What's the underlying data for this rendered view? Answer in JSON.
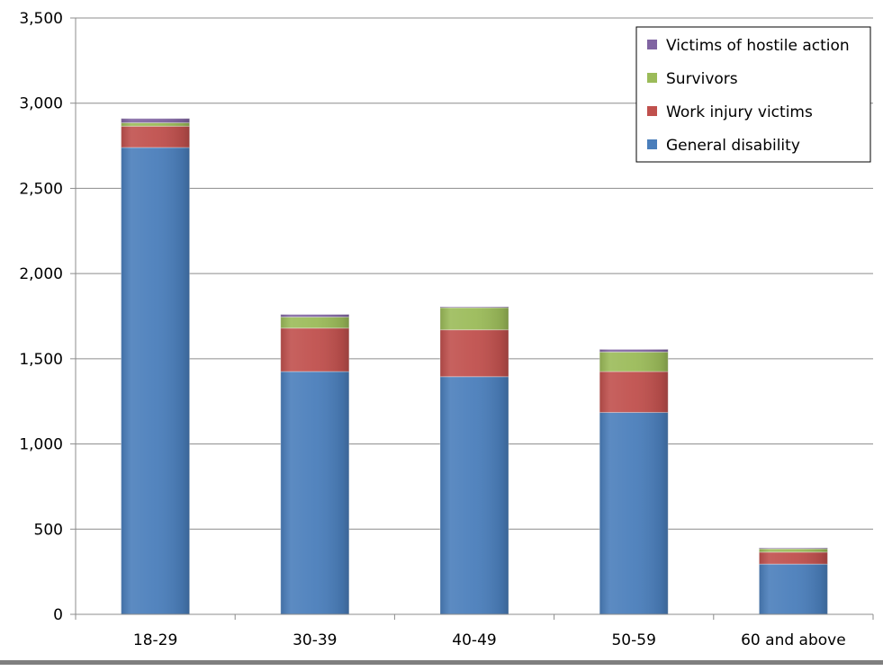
{
  "chart_data": {
    "type": "bar",
    "stacked": true,
    "categories": [
      "18-29",
      "30-39",
      "40-49",
      "50-59",
      "60 and above"
    ],
    "series": [
      {
        "name": "General disability",
        "color": "#4a7ebb",
        "values": [
          2740,
          1425,
          1395,
          1185,
          295
        ]
      },
      {
        "name": "Work injury victims",
        "color": "#c0504d",
        "values": [
          125,
          255,
          275,
          240,
          70
        ]
      },
      {
        "name": "Survivors",
        "color": "#9bbb59",
        "values": [
          20,
          65,
          130,
          115,
          20
        ]
      },
      {
        "name": "Victims of hostile action",
        "color": "#8064a2",
        "values": [
          25,
          15,
          5,
          15,
          5
        ]
      }
    ],
    "ylim": [
      0,
      3500
    ],
    "yticks": [
      0,
      500,
      1000,
      1500,
      2000,
      2500,
      3000,
      3500
    ],
    "ytick_labels": [
      "0",
      "500",
      "1,000",
      "1,500",
      "2,000",
      "2,500",
      "3,000",
      "3,500"
    ],
    "grid": true,
    "legend_position": "top-right",
    "legend_order": [
      "Victims of hostile action",
      "Survivors",
      "Work injury victims",
      "General disability"
    ]
  }
}
